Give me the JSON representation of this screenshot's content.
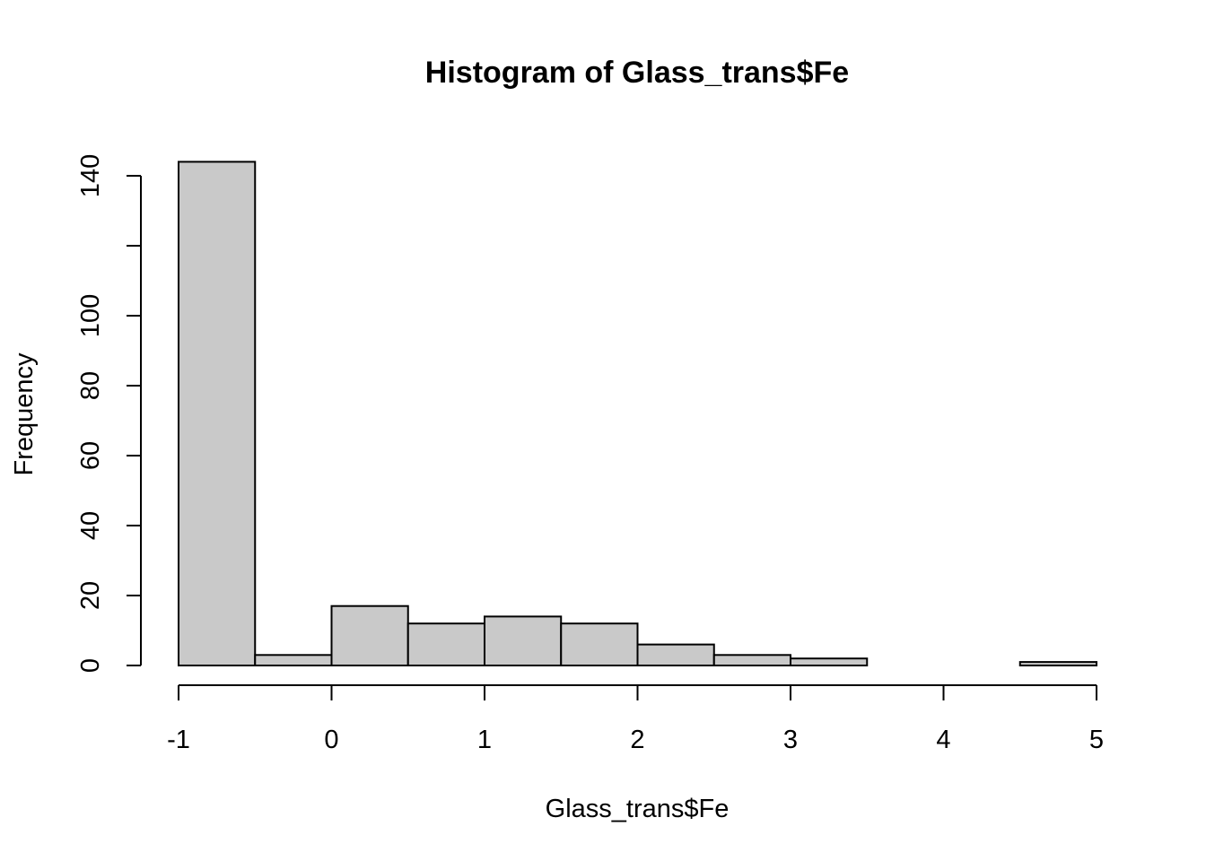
{
  "chart_data": {
    "type": "bar",
    "title": "Histogram of Glass_trans$Fe",
    "xlabel": "Glass_trans$Fe",
    "ylabel": "Frequency",
    "bins": [
      {
        "x0": -1.0,
        "x1": -0.5,
        "count": 144
      },
      {
        "x0": -0.5,
        "x1": 0.0,
        "count": 3
      },
      {
        "x0": 0.0,
        "x1": 0.5,
        "count": 17
      },
      {
        "x0": 0.5,
        "x1": 1.0,
        "count": 12
      },
      {
        "x0": 1.0,
        "x1": 1.5,
        "count": 14
      },
      {
        "x0": 1.5,
        "x1": 2.0,
        "count": 12
      },
      {
        "x0": 2.0,
        "x1": 2.5,
        "count": 6
      },
      {
        "x0": 2.5,
        "x1": 3.0,
        "count": 3
      },
      {
        "x0": 3.0,
        "x1": 3.5,
        "count": 2
      },
      {
        "x0": 3.5,
        "x1": 4.0,
        "count": 0
      },
      {
        "x0": 4.0,
        "x1": 4.5,
        "count": 0
      },
      {
        "x0": 4.5,
        "x1": 5.0,
        "count": 1
      }
    ],
    "xlim": [
      -1,
      5
    ],
    "ylim": [
      0,
      140
    ],
    "xticks": [
      -1,
      0,
      1,
      2,
      3,
      4,
      5
    ],
    "xtick_labels": [
      "-1",
      "0",
      "1",
      "2",
      "3",
      "4",
      "5"
    ],
    "yticks": [
      0,
      20,
      40,
      60,
      80,
      100,
      120,
      140
    ],
    "ytick_labels": [
      "0",
      "20",
      "40",
      "60",
      "80",
      "100",
      "",
      "140"
    ],
    "bar_fill": "#c9c9c9",
    "bar_stroke": "#000000",
    "grid": false,
    "legend": "none"
  }
}
